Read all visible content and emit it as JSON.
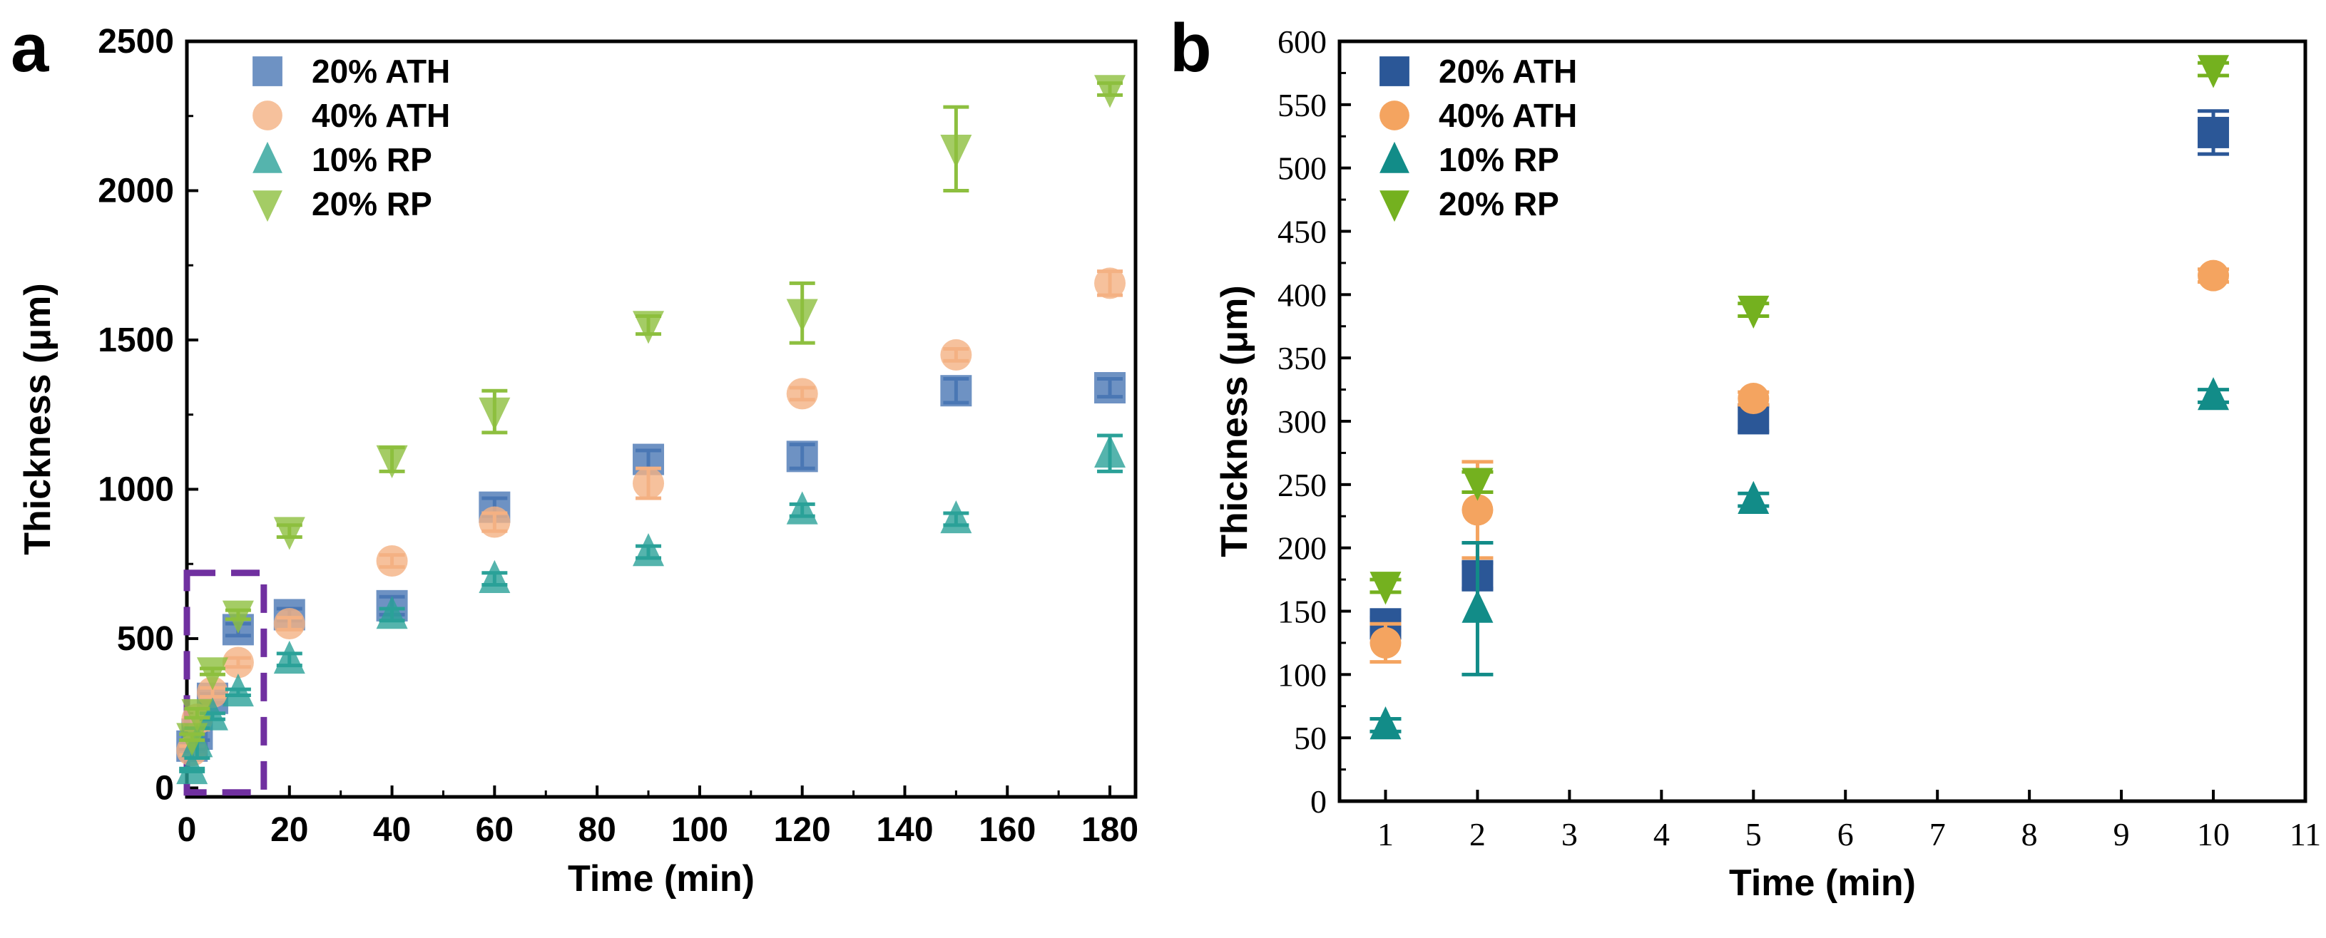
{
  "chart_data": [
    {
      "type": "scatter",
      "panel": "a",
      "xlabel": "Time (min)",
      "ylabel": "Thickness (μm)",
      "xlim": [
        0,
        185
      ],
      "ylim": [
        -30,
        2500
      ],
      "xticks": [
        0,
        20,
        40,
        60,
        80,
        100,
        120,
        140,
        160,
        180
      ],
      "yticks": [
        0,
        500,
        1000,
        1500,
        2000,
        2500
      ],
      "legend_position": "top-left",
      "highlight_box_label": "",
      "series": [
        {
          "name": "20% ATH",
          "marker": "square",
          "color": "#4a77b4",
          "x": [
            1,
            2,
            5,
            10,
            20,
            40,
            60,
            90,
            120,
            150,
            180
          ],
          "y": [
            140,
            180,
            300,
            530,
            580,
            610,
            940,
            1100,
            1110,
            1330,
            1340
          ],
          "err": [
            10,
            20,
            15,
            20,
            20,
            30,
            30,
            30,
            40,
            40,
            30
          ]
        },
        {
          "name": "40% ATH",
          "marker": "circle",
          "color": "#f4b183",
          "x": [
            1,
            2,
            5,
            10,
            20,
            40,
            60,
            90,
            120,
            150,
            180
          ],
          "y": [
            125,
            230,
            320,
            420,
            550,
            760,
            890,
            1020,
            1320,
            1450,
            1690
          ],
          "err": [
            15,
            35,
            15,
            15,
            20,
            20,
            30,
            50,
            20,
            20,
            40
          ]
        },
        {
          "name": "10%  RP",
          "marker": "triangle-up",
          "color": "#2aa198",
          "x": [
            1,
            2,
            5,
            10,
            20,
            40,
            60,
            90,
            120,
            150,
            180
          ],
          "y": [
            60,
            150,
            240,
            320,
            430,
            580,
            700,
            790,
            930,
            900,
            1120
          ],
          "err": [
            5,
            50,
            10,
            10,
            20,
            20,
            20,
            20,
            20,
            20,
            60
          ]
        },
        {
          "name": "20%  RP",
          "marker": "triangle-down",
          "color": "#8dbf3f",
          "x": [
            1,
            2,
            5,
            10,
            20,
            40,
            60,
            90,
            120,
            150,
            180
          ],
          "y": [
            170,
            250,
            390,
            580,
            860,
            1100,
            1260,
            1550,
            1590,
            2140,
            2340
          ],
          "err": [
            10,
            15,
            10,
            15,
            20,
            40,
            70,
            30,
            100,
            140,
            20
          ]
        }
      ]
    },
    {
      "type": "scatter",
      "panel": "b",
      "xlabel": "Time (min)",
      "ylabel": "Thickness (μm)",
      "xlim": [
        0.5,
        11
      ],
      "ylim": [
        0,
        600
      ],
      "xticks": [
        1,
        2,
        3,
        4,
        5,
        6,
        7,
        8,
        9,
        10,
        11
      ],
      "yticks": [
        0,
        50,
        100,
        150,
        200,
        250,
        300,
        350,
        400,
        450,
        500,
        550,
        600
      ],
      "legend_position": "top-left",
      "series": [
        {
          "name": "20% ATH",
          "marker": "square",
          "color": "#2b5797",
          "x": [
            1,
            2,
            5,
            10
          ],
          "y": [
            140,
            178,
            302,
            528
          ],
          "err": [
            5,
            10,
            10,
            17
          ]
        },
        {
          "name": "40% ATH",
          "marker": "circle",
          "color": "#f4a460",
          "x": [
            1,
            2,
            5,
            10
          ],
          "y": [
            125,
            230,
            318,
            415
          ],
          "err": [
            15,
            38,
            5,
            5
          ]
        },
        {
          "name": "10%  RP",
          "marker": "triangle-up",
          "color": "#128c88",
          "x": [
            1,
            2,
            5,
            10
          ],
          "y": [
            60,
            152,
            238,
            320
          ],
          "err": [
            5,
            52,
            5,
            5
          ]
        },
        {
          "name": "20%  RP",
          "marker": "triangle-down",
          "color": "#74b11f",
          "x": [
            1,
            2,
            5,
            10
          ],
          "y": [
            170,
            252,
            388,
            578
          ],
          "err": [
            5,
            8,
            5,
            5
          ]
        }
      ]
    }
  ],
  "labels": {
    "panel_a": "a",
    "panel_b": "b"
  }
}
